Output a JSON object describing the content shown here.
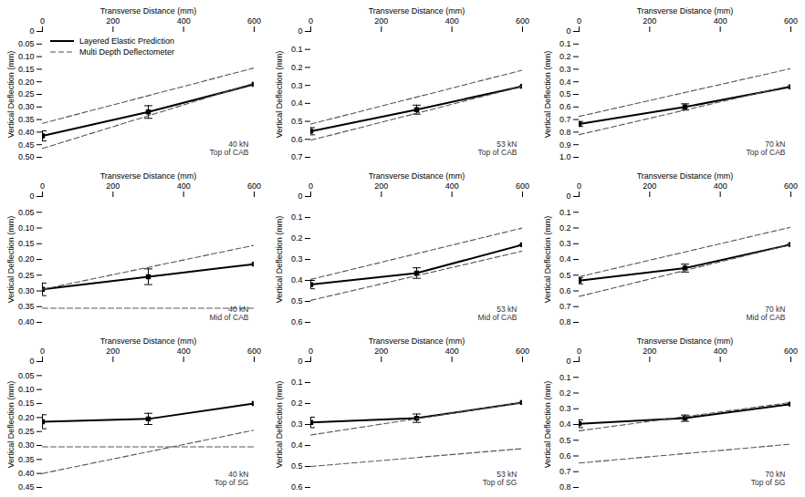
{
  "chart_data": [
    {
      "type": "line",
      "xlabel": "Transverse Distance (mm)",
      "ylabel": "Vertical Deflection (mm)",
      "xlim": [
        0,
        600
      ],
      "xticks": [
        0,
        200,
        400,
        600
      ],
      "ylim": [
        0.5,
        0.0
      ],
      "yticks": [
        0,
        0.05,
        {
          "value": 0.1,
          "label": "0.10"
        },
        0.15,
        {
          "value": 0.2,
          "label": "0.20"
        },
        0.25,
        {
          "value": 0.3,
          "label": "0.30"
        },
        0.35,
        {
          "value": 0.4,
          "label": "0.40"
        },
        0.45,
        {
          "value": 0.5,
          "label": "0.50"
        }
      ],
      "grid": false,
      "legend": "upper left",
      "annotations": [
        "40 kN\nTop of CAB"
      ],
      "series": [
        {
          "name": "Layered Elastic Prediction",
          "color": "#000000",
          "line_style": "solid",
          "marker": "square",
          "x": [
            0,
            300,
            600
          ],
          "values": [
            0.415,
            0.32,
            0.21
          ],
          "error": [
            0.02,
            0.025,
            0.0
          ]
        },
        {
          "name": "Multi Depth Deflectometer",
          "color": "#555555",
          "line_style": "dashed",
          "x": [
            0,
            600
          ],
          "values": [
            0.365,
            0.145
          ]
        },
        {
          "name": "Multi Depth Deflectometer",
          "color": "#555555",
          "line_style": "dashed",
          "x": [
            0,
            600
          ],
          "values": [
            0.465,
            0.205
          ]
        }
      ]
    },
    {
      "type": "line",
      "xlabel": "Transverse Distance (mm)",
      "ylabel": "Vertical Deflection (mm)",
      "xlim": [
        0,
        600
      ],
      "xticks": [
        0,
        200,
        400,
        600
      ],
      "ylim": [
        0.7,
        0.0
      ],
      "yticks": [
        0,
        0.1,
        0.2,
        0.3,
        0.4,
        0.5,
        0.6,
        0.7
      ],
      "grid": false,
      "annotations": [
        "53 kN\nTop of CAB"
      ],
      "series": [
        {
          "name": "Layered Elastic Prediction",
          "color": "#000000",
          "line_style": "solid",
          "marker": "square",
          "x": [
            0,
            300,
            600
          ],
          "values": [
            0.555,
            0.435,
            0.305
          ],
          "error": [
            0.02,
            0.025,
            0.0
          ]
        },
        {
          "name": "Multi Depth Deflectometer",
          "color": "#555555",
          "line_style": "dashed",
          "x": [
            0,
            600
          ],
          "values": [
            0.515,
            0.215
          ]
        },
        {
          "name": "Multi Depth Deflectometer",
          "color": "#555555",
          "line_style": "dashed",
          "x": [
            0,
            600
          ],
          "values": [
            0.605,
            0.305
          ]
        }
      ]
    },
    {
      "type": "line",
      "xlabel": "Transverse Distance (mm)",
      "ylabel": "Vertical Deflection (mm)",
      "xlim": [
        0,
        600
      ],
      "xticks": [
        0,
        200,
        400,
        600
      ],
      "ylim": [
        1.0,
        0.0
      ],
      "yticks": [
        0,
        0.1,
        0.2,
        0.3,
        0.4,
        0.5,
        0.6,
        0.7,
        0.8,
        0.9,
        {
          "value": 1.0,
          "label": "1.0"
        }
      ],
      "grid": false,
      "annotations": [
        "70 kN\nTop of CAB"
      ],
      "series": [
        {
          "name": "Layered Elastic Prediction",
          "color": "#000000",
          "line_style": "solid",
          "marker": "square",
          "x": [
            0,
            300,
            600
          ],
          "values": [
            0.735,
            0.6,
            0.44
          ],
          "error": [
            0.02,
            0.025,
            0.0
          ]
        },
        {
          "name": "Multi Depth Deflectometer",
          "color": "#555555",
          "line_style": "dashed",
          "x": [
            0,
            600
          ],
          "values": [
            0.675,
            0.295
          ]
        },
        {
          "name": "Multi Depth Deflectometer",
          "color": "#555555",
          "line_style": "dashed",
          "x": [
            0,
            600
          ],
          "values": [
            0.82,
            0.43
          ]
        }
      ]
    },
    {
      "type": "line",
      "xlabel": "Transverse Distance (mm)",
      "ylabel": "Vertical Deflection (mm)",
      "xlim": [
        0,
        600
      ],
      "xticks": [
        0,
        200,
        400,
        600
      ],
      "ylim": [
        0.4,
        0.0
      ],
      "yticks": [
        0,
        0.05,
        {
          "value": 0.1,
          "label": "0.10"
        },
        0.15,
        {
          "value": 0.2,
          "label": "0.20"
        },
        0.25,
        {
          "value": 0.3,
          "label": "0.30"
        },
        0.35,
        {
          "value": 0.4,
          "label": "0.40"
        }
      ],
      "grid": false,
      "annotations": [
        "40 kN\nMid of CAB"
      ],
      "series": [
        {
          "name": "Layered Elastic Prediction",
          "color": "#000000",
          "line_style": "solid",
          "marker": "square",
          "x": [
            0,
            300,
            600
          ],
          "values": [
            0.295,
            0.255,
            0.215
          ],
          "error": [
            0.02,
            0.025,
            0.0
          ]
        },
        {
          "name": "Multi Depth Deflectometer",
          "color": "#555555",
          "line_style": "dashed",
          "x": [
            0,
            600
          ],
          "values": [
            0.355,
            0.355
          ]
        },
        {
          "name": "Multi Depth Deflectometer",
          "color": "#555555",
          "line_style": "dashed",
          "x": [
            0,
            600
          ],
          "values": [
            0.295,
            0.155
          ]
        }
      ]
    },
    {
      "type": "line",
      "xlabel": "Transverse Distance (mm)",
      "ylabel": "Vertical Deflection (mm)",
      "xlim": [
        0,
        600
      ],
      "xticks": [
        0,
        200,
        400,
        600
      ],
      "ylim": [
        0.6,
        0.0
      ],
      "yticks": [
        0,
        0.1,
        0.2,
        0.3,
        0.4,
        0.5,
        0.6
      ],
      "grid": false,
      "annotations": [
        "53 kN\nMid of CAB"
      ],
      "series": [
        {
          "name": "Layered Elastic Prediction",
          "color": "#000000",
          "line_style": "solid",
          "marker": "square",
          "x": [
            0,
            300,
            600
          ],
          "values": [
            0.42,
            0.365,
            0.23
          ],
          "error": [
            0.02,
            0.025,
            0.0
          ]
        },
        {
          "name": "Multi Depth Deflectometer",
          "color": "#555555",
          "line_style": "dashed",
          "x": [
            0,
            600
          ],
          "values": [
            0.395,
            0.15
          ]
        },
        {
          "name": "Multi Depth Deflectometer",
          "color": "#555555",
          "line_style": "dashed",
          "x": [
            0,
            600
          ],
          "values": [
            0.495,
            0.26
          ]
        }
      ]
    },
    {
      "type": "line",
      "xlabel": "Transverse Distance (mm)",
      "ylabel": "Vertical Deflection (mm)",
      "xlim": [
        0,
        600
      ],
      "xticks": [
        0,
        200,
        400,
        600
      ],
      "ylim": [
        0.8,
        0.0
      ],
      "yticks": [
        0,
        0.1,
        0.2,
        0.3,
        0.4,
        0.5,
        0.6,
        0.7,
        0.8
      ],
      "grid": false,
      "annotations": [
        "70 kN\nMid of CAB"
      ],
      "series": [
        {
          "name": "Layered Elastic Prediction",
          "color": "#000000",
          "line_style": "solid",
          "marker": "square",
          "x": [
            0,
            300,
            600
          ],
          "values": [
            0.535,
            0.455,
            0.305
          ],
          "error": [
            0.02,
            0.025,
            0.0
          ]
        },
        {
          "name": "Multi Depth Deflectometer",
          "color": "#555555",
          "line_style": "dashed",
          "x": [
            0,
            600
          ],
          "values": [
            0.51,
            0.195
          ]
        },
        {
          "name": "Multi Depth Deflectometer",
          "color": "#555555",
          "line_style": "dashed",
          "x": [
            0,
            600
          ],
          "values": [
            0.635,
            0.305
          ]
        }
      ]
    },
    {
      "type": "line",
      "xlabel": "Transverse Distance (mm)",
      "ylabel": "Vertical Deflection (mm)",
      "xlim": [
        0,
        600
      ],
      "xticks": [
        0,
        200,
        400,
        600
      ],
      "ylim": [
        0.45,
        0.0
      ],
      "yticks": [
        0,
        0.05,
        {
          "value": 0.1,
          "label": "0.10"
        },
        0.15,
        {
          "value": 0.2,
          "label": "0.20"
        },
        0.25,
        {
          "value": 0.3,
          "label": "0.30"
        },
        0.35,
        {
          "value": 0.4,
          "label": "0.40"
        },
        0.45
      ],
      "grid": false,
      "annotations": [
        "40 kN\nTop of SG"
      ],
      "series": [
        {
          "name": "Layered Elastic Prediction",
          "color": "#000000",
          "line_style": "solid",
          "marker": "square",
          "x": [
            0,
            300,
            600
          ],
          "values": [
            0.215,
            0.205,
            0.15
          ],
          "error": [
            0.025,
            0.02,
            0.0
          ]
        },
        {
          "name": "Multi Depth Deflectometer",
          "color": "#555555",
          "line_style": "dashed",
          "x": [
            0,
            600
          ],
          "values": [
            0.305,
            0.305
          ]
        },
        {
          "name": "Multi Depth Deflectometer",
          "color": "#555555",
          "line_style": "dashed",
          "x": [
            0,
            600
          ],
          "values": [
            0.4,
            0.245
          ]
        }
      ]
    },
    {
      "type": "line",
      "xlabel": "Transverse Distance (mm)",
      "ylabel": "Vertical Deflection (mm)",
      "xlim": [
        0,
        600
      ],
      "xticks": [
        0,
        200,
        400,
        600
      ],
      "ylim": [
        0.6,
        0.0
      ],
      "yticks": [
        0,
        0.1,
        0.2,
        0.3,
        0.4,
        0.5,
        0.6
      ],
      "grid": false,
      "annotations": [
        "53 kN\nTop of SG"
      ],
      "series": [
        {
          "name": "Layered Elastic Prediction",
          "color": "#000000",
          "line_style": "solid",
          "marker": "square",
          "x": [
            0,
            300,
            600
          ],
          "values": [
            0.29,
            0.27,
            0.195
          ],
          "error": [
            0.025,
            0.02,
            0.0
          ]
        },
        {
          "name": "Multi Depth Deflectometer",
          "color": "#555555",
          "line_style": "dashed",
          "x": [
            0,
            600
          ],
          "values": [
            0.35,
            0.195
          ]
        },
        {
          "name": "Multi Depth Deflectometer",
          "color": "#555555",
          "line_style": "dashed",
          "x": [
            0,
            600
          ],
          "values": [
            0.5,
            0.415
          ]
        }
      ]
    },
    {
      "type": "line",
      "xlabel": "Transverse Distance (mm)",
      "ylabel": "Vertical Deflection (mm)",
      "xlim": [
        0,
        600
      ],
      "xticks": [
        0,
        200,
        400,
        600
      ],
      "ylim": [
        0.8,
        0.0
      ],
      "yticks": [
        0,
        0.1,
        0.2,
        0.3,
        0.4,
        0.5,
        0.6,
        0.7,
        0.8
      ],
      "grid": false,
      "annotations": [
        "70 kN\nTop of SG"
      ],
      "series": [
        {
          "name": "Layered Elastic Prediction",
          "color": "#000000",
          "line_style": "solid",
          "marker": "square",
          "x": [
            0,
            300,
            600
          ],
          "values": [
            0.395,
            0.36,
            0.27
          ],
          "error": [
            0.025,
            0.02,
            0.0
          ]
        },
        {
          "name": "Multi Depth Deflectometer",
          "color": "#555555",
          "line_style": "dashed",
          "x": [
            0,
            600
          ],
          "values": [
            0.44,
            0.26
          ]
        },
        {
          "name": "Multi Depth Deflectometer",
          "color": "#555555",
          "line_style": "dashed",
          "x": [
            0,
            600
          ],
          "values": [
            0.645,
            0.525
          ]
        }
      ]
    }
  ]
}
